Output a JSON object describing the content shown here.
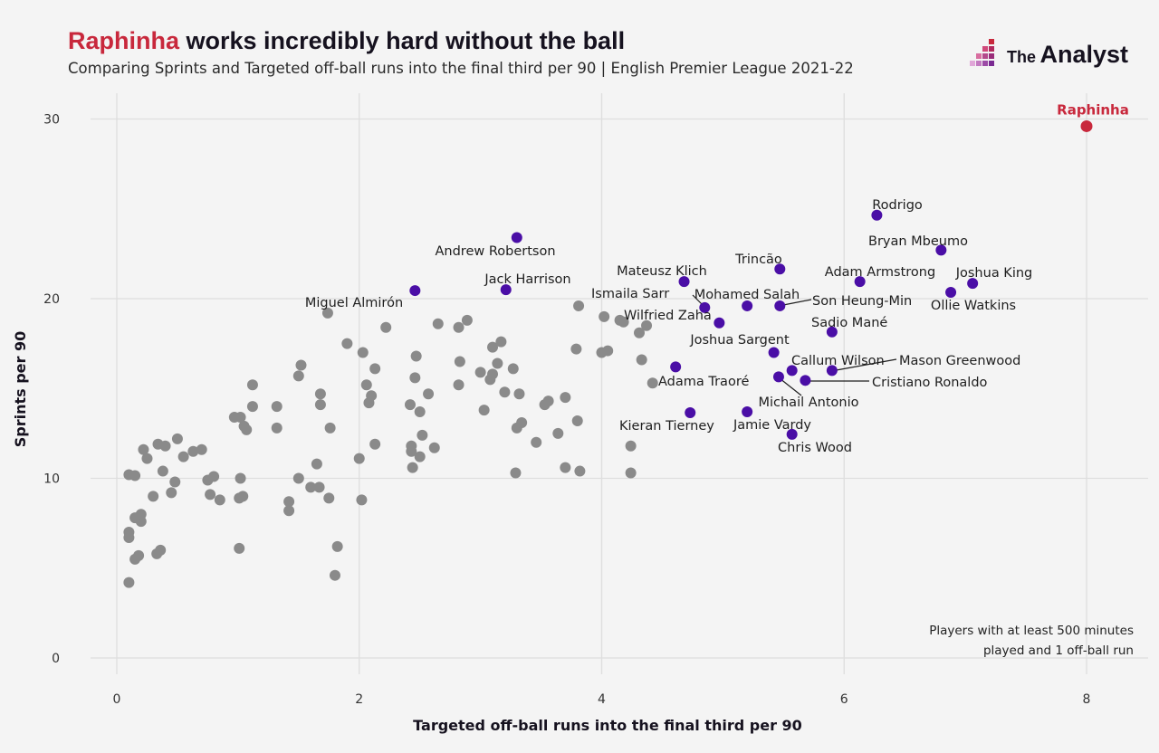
{
  "title": {
    "highlight": "Raphinha",
    "rest": " works incredibly hard without the ball"
  },
  "subtitle": "Comparing Sprints and Targeted off-ball runs into the final third per 90 | English Premier League 2021-22",
  "brand": {
    "the": "The",
    "name": "Analyst",
    "icon": "analyst-logo-icon"
  },
  "note": [
    "Players with at least 500 minutes",
    "played and 1 off-ball run"
  ],
  "colors": {
    "background": "#f4f4f4",
    "other": "#8a8a8a",
    "named": "#4a0ea6",
    "highlight": "#c8283c",
    "grid": "#dedede"
  },
  "chart_data": {
    "type": "scatter",
    "xlabel": "Targeted off-ball runs into the final third per 90",
    "ylabel": "Sprints per 90",
    "xlim": [
      0,
      8
    ],
    "ylim": [
      0,
      30
    ],
    "xticks": [
      0,
      2,
      4,
      6,
      8
    ],
    "yticks": [
      0,
      10,
      20,
      30
    ],
    "grid": true,
    "highlight": {
      "name": "Raphinha",
      "x": 8.0,
      "y": 29.6
    },
    "named_points": [
      {
        "name": "Rodrigo",
        "x": 6.27,
        "y": 24.65
      },
      {
        "name": "Bryan Mbeumo",
        "x": 6.8,
        "y": 22.7
      },
      {
        "name": "Andrew Robertson",
        "x": 3.3,
        "y": 23.4
      },
      {
        "name": "Trincão",
        "x": 5.47,
        "y": 21.65
      },
      {
        "name": "Adam Armstrong",
        "x": 6.13,
        "y": 20.95
      },
      {
        "name": "Joshua King",
        "x": 7.06,
        "y": 20.85
      },
      {
        "name": "Mateusz Klich",
        "x": 4.68,
        "y": 20.95
      },
      {
        "name": "Jack Harrison",
        "x": 3.21,
        "y": 20.5
      },
      {
        "name": "Miguel Almirón",
        "x": 2.46,
        "y": 20.45
      },
      {
        "name": "Ollie Watkins",
        "x": 6.88,
        "y": 20.35
      },
      {
        "name": "Ismaila Sarr",
        "x": 4.85,
        "y": 19.5
      },
      {
        "name": "Mohamed Salah",
        "x": 5.2,
        "y": 19.6
      },
      {
        "name": "Son Heung-Min",
        "x": 5.47,
        "y": 19.6
      },
      {
        "name": "Wilfried Zaha",
        "x": 4.97,
        "y": 18.65
      },
      {
        "name": "Sadio Mané",
        "x": 5.9,
        "y": 18.15
      },
      {
        "name": "Joshua Sargent",
        "x": 5.42,
        "y": 17.0
      },
      {
        "name": "Adama Traoré",
        "x": 4.61,
        "y": 16.2
      },
      {
        "name": "Callum Wilson",
        "x": 5.57,
        "y": 16.0
      },
      {
        "name": "Mason Greenwood",
        "x": 5.9,
        "y": 16.0
      },
      {
        "name": "Michail Antonio",
        "x": 5.46,
        "y": 15.65
      },
      {
        "name": "Cristiano Ronaldo",
        "x": 5.68,
        "y": 15.45
      },
      {
        "name": "Kieran Tierney",
        "x": 4.73,
        "y": 13.65
      },
      {
        "name": "Jamie Vardy",
        "x": 5.2,
        "y": 13.7
      },
      {
        "name": "Chris Wood",
        "x": 5.57,
        "y": 12.45
      }
    ],
    "other_points": [
      [
        0.1,
        10.2
      ],
      [
        0.15,
        10.15
      ],
      [
        0.1,
        7.0
      ],
      [
        0.1,
        6.7
      ],
      [
        0.1,
        4.2
      ],
      [
        0.15,
        5.5
      ],
      [
        0.18,
        5.7
      ],
      [
        0.2,
        7.6
      ],
      [
        0.2,
        8.0
      ],
      [
        0.15,
        7.8
      ],
      [
        0.22,
        11.6
      ],
      [
        0.25,
        11.1
      ],
      [
        0.3,
        9.0
      ],
      [
        0.33,
        5.8
      ],
      [
        0.36,
        6.0
      ],
      [
        0.34,
        11.9
      ],
      [
        0.4,
        11.8
      ],
      [
        0.38,
        10.4
      ],
      [
        0.45,
        9.2
      ],
      [
        0.48,
        9.8
      ],
      [
        0.5,
        12.2
      ],
      [
        0.55,
        11.2
      ],
      [
        0.63,
        11.5
      ],
      [
        0.7,
        11.6
      ],
      [
        0.75,
        9.9
      ],
      [
        0.8,
        10.1
      ],
      [
        0.77,
        9.1
      ],
      [
        0.85,
        8.8
      ],
      [
        0.97,
        13.4
      ],
      [
        1.02,
        13.4
      ],
      [
        1.05,
        12.9
      ],
      [
        1.07,
        12.7
      ],
      [
        1.02,
        10.0
      ],
      [
        1.01,
        8.9
      ],
      [
        1.04,
        9.0
      ],
      [
        1.01,
        6.1
      ],
      [
        1.12,
        15.2
      ],
      [
        1.12,
        14.0
      ],
      [
        1.32,
        14.0
      ],
      [
        1.32,
        12.8
      ],
      [
        1.42,
        8.7
      ],
      [
        1.42,
        8.2
      ],
      [
        1.5,
        10.0
      ],
      [
        1.52,
        16.3
      ],
      [
        1.5,
        15.7
      ],
      [
        1.6,
        9.5
      ],
      [
        1.65,
        10.8
      ],
      [
        1.67,
        9.5
      ],
      [
        1.68,
        14.7
      ],
      [
        1.68,
        14.1
      ],
      [
        1.74,
        19.2
      ],
      [
        1.76,
        12.8
      ],
      [
        1.75,
        8.9
      ],
      [
        1.8,
        4.6
      ],
      [
        1.82,
        6.2
      ],
      [
        1.9,
        17.5
      ],
      [
        2.0,
        11.1
      ],
      [
        2.02,
        8.8
      ],
      [
        2.03,
        17.0
      ],
      [
        2.06,
        15.2
      ],
      [
        2.08,
        14.2
      ],
      [
        2.1,
        14.6
      ],
      [
        2.13,
        16.1
      ],
      [
        2.13,
        11.9
      ],
      [
        2.22,
        18.4
      ],
      [
        2.42,
        14.1
      ],
      [
        2.43,
        11.5
      ],
      [
        2.43,
        11.8
      ],
      [
        2.44,
        10.6
      ],
      [
        2.46,
        15.6
      ],
      [
        2.47,
        16.8
      ],
      [
        2.5,
        13.7
      ],
      [
        2.5,
        11.2
      ],
      [
        2.52,
        12.4
      ],
      [
        2.57,
        14.7
      ],
      [
        2.62,
        11.7
      ],
      [
        2.65,
        18.6
      ],
      [
        2.82,
        18.4
      ],
      [
        2.83,
        16.5
      ],
      [
        2.82,
        15.2
      ],
      [
        2.89,
        18.8
      ],
      [
        3.0,
        15.9
      ],
      [
        3.03,
        13.8
      ],
      [
        3.08,
        15.5
      ],
      [
        3.1,
        15.8
      ],
      [
        3.1,
        17.3
      ],
      [
        3.14,
        16.4
      ],
      [
        3.17,
        17.6
      ],
      [
        3.2,
        14.8
      ],
      [
        3.27,
        16.1
      ],
      [
        3.3,
        12.8
      ],
      [
        3.32,
        14.7
      ],
      [
        3.34,
        13.1
      ],
      [
        3.29,
        10.3
      ],
      [
        3.46,
        12.0
      ],
      [
        3.53,
        14.1
      ],
      [
        3.56,
        14.3
      ],
      [
        3.64,
        12.5
      ],
      [
        3.7,
        14.5
      ],
      [
        3.7,
        10.6
      ],
      [
        3.79,
        17.2
      ],
      [
        3.8,
        13.2
      ],
      [
        3.81,
        19.6
      ],
      [
        3.82,
        10.4
      ],
      [
        4.02,
        19.0
      ],
      [
        4.0,
        17.0
      ],
      [
        4.05,
        17.1
      ],
      [
        4.15,
        18.8
      ],
      [
        4.18,
        18.7
      ],
      [
        4.24,
        11.8
      ],
      [
        4.24,
        10.3
      ],
      [
        4.31,
        18.1
      ],
      [
        4.33,
        16.6
      ],
      [
        4.37,
        18.5
      ],
      [
        4.42,
        15.3
      ]
    ]
  }
}
